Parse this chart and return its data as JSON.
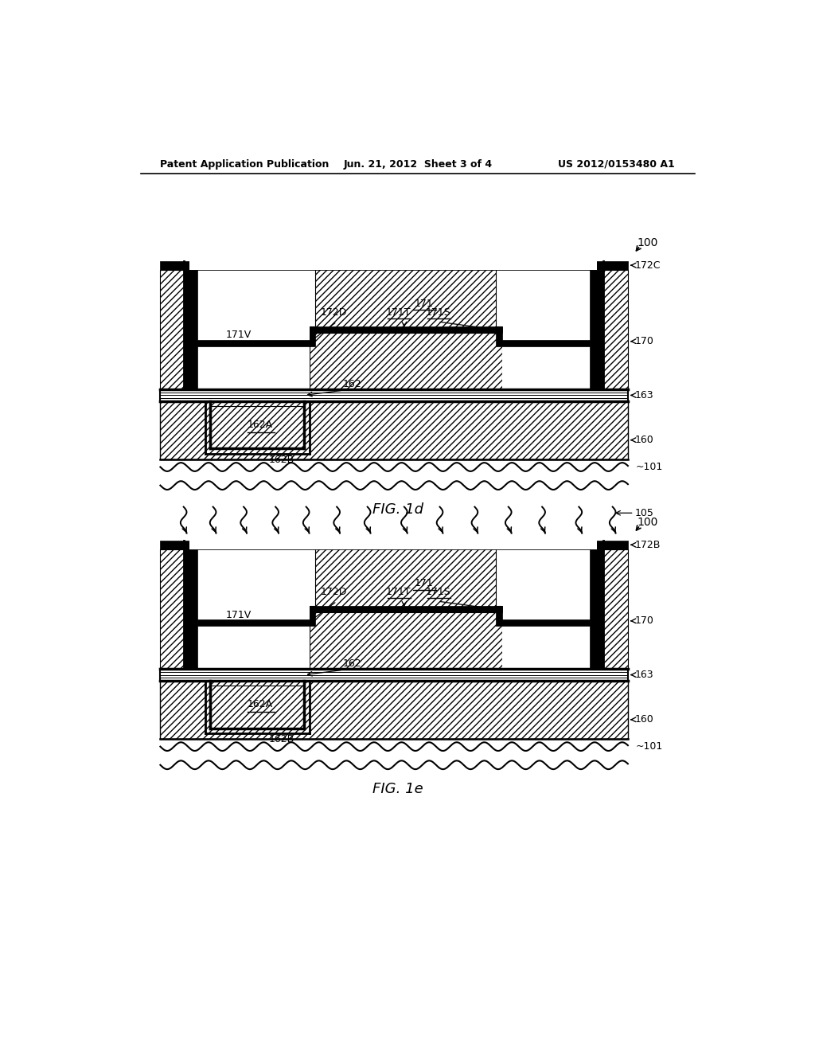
{
  "header_left": "Patent Application Publication",
  "header_mid": "Jun. 21, 2012  Sheet 3 of 4",
  "header_right": "US 2012/0153480 A1",
  "fig1d_label": "FIG. 1d",
  "fig1e_label": "FIG. 1e",
  "bg_color": "#ffffff",
  "label_100": "100",
  "label_101": "~101",
  "label_105": "105",
  "label_160": "160",
  "label_163": "163",
  "label_170": "170",
  "label_171": "171",
  "label_171V": "171V",
  "label_171T": "171T",
  "label_171S": "171S",
  "label_172C": "172C",
  "label_172B": "172B",
  "label_172D": "172D",
  "label_162": "162",
  "label_162A": "162A",
  "label_162B": "162B"
}
